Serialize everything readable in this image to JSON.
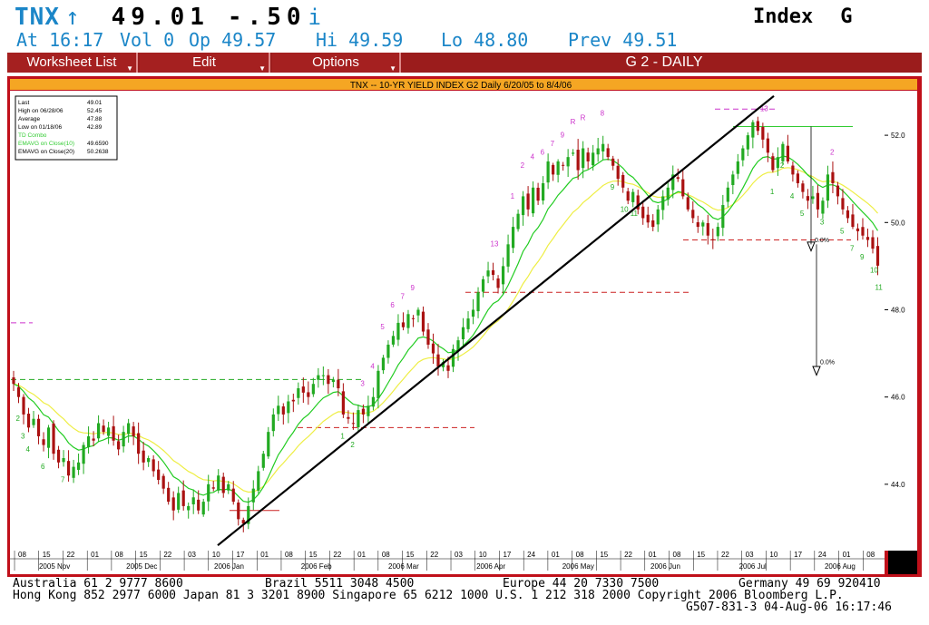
{
  "header": {
    "symbol": "TNX",
    "arrow": "↑",
    "last": "49.01",
    "change": "-.50",
    "info_icon": "i",
    "type": "Index",
    "type_key": "G",
    "quote": {
      "at": "At 16:17",
      "vol": "Vol 0",
      "op": "Op 49.57",
      "hi": "Hi 49.59",
      "lo": "Lo 48.80",
      "prev": "Prev 49.51"
    }
  },
  "menu": {
    "worksheet": "Worksheet List",
    "edit": "Edit",
    "options": "Options",
    "title": "G  2 - DAILY"
  },
  "chart": {
    "title": "TNX -- 10-YR YIELD INDEX G2 Daily 6/20/05 to 8/4/06",
    "legend": [
      {
        "label": "Last",
        "value": "49.01",
        "color": "#000000"
      },
      {
        "label": "High on  06/28/06",
        "value": "52.45",
        "color": "#000000"
      },
      {
        "label": "Average",
        "value": "47.88",
        "color": "#000000"
      },
      {
        "label": "Low on  01/18/06",
        "value": "42.89",
        "color": "#000000"
      },
      {
        "label": "TD Combo",
        "value": "",
        "color": "#33cc33"
      },
      {
        "label": "EMAVG on Close(10)",
        "value": "49.6590",
        "color": "#33cc33"
      },
      {
        "label": "EMAVG on Close(20)",
        "value": "50.2638",
        "color": "#000000"
      }
    ],
    "y_ticks": [
      "52.0",
      "50.0",
      "48.0",
      "46.0",
      "44.0"
    ],
    "x_days": [
      "08",
      "15",
      "22",
      "01",
      "08",
      "15",
      "22",
      "03",
      "10",
      "17",
      "01",
      "08",
      "15",
      "22",
      "01",
      "08",
      "15",
      "22",
      "03",
      "10",
      "17",
      "24",
      "01",
      "08",
      "15",
      "22",
      "01",
      "08",
      "15",
      "22",
      "03",
      "10",
      "17",
      "24",
      "01",
      "08"
    ],
    "x_months": [
      "2005 Nov",
      "2005 Dec",
      "2006 Jan",
      "2006 Feb",
      "2006 Mar",
      "2006 Apr",
      "2006 May",
      "2006 Jun",
      "2006 Jul",
      "2006 Aug"
    ],
    "pct_labels": [
      "0.0%",
      "0.0%"
    ],
    "colors": {
      "up": "#22aa22",
      "down": "#aa1111",
      "ema10": "#22cc22",
      "ema20": "#eeee44",
      "trend": "#000000",
      "frame": "#c0101a",
      "title_bg": "#f5a623",
      "td": "#cc33cc"
    }
  },
  "chart_data": {
    "type": "candlestick",
    "title": "TNX -- 10-YR YIELD INDEX G2 Daily 6/20/05 to 8/4/06",
    "x_range": [
      "2005-11-07",
      "2006-08-04"
    ],
    "ylim": [
      42.5,
      53.0
    ],
    "close": [
      46.3,
      46.0,
      45.6,
      45.3,
      45.5,
      45.1,
      44.9,
      45.3,
      44.7,
      44.5,
      44.6,
      44.2,
      44.4,
      44.5,
      44.9,
      45.1,
      45.0,
      45.4,
      45.2,
      45.3,
      45.0,
      44.8,
      45.2,
      45.4,
      45.1,
      44.7,
      44.5,
      44.6,
      44.3,
      44.1,
      43.9,
      43.6,
      43.4,
      43.8,
      43.5,
      43.5,
      43.7,
      43.4,
      43.6,
      44.0,
      43.9,
      44.2,
      43.8,
      44.0,
      43.6,
      43.2,
      43.1,
      43.5,
      43.9,
      44.3,
      44.7,
      45.2,
      45.6,
      45.8,
      45.6,
      45.9,
      45.9,
      46.2,
      46.1,
      46.0,
      46.3,
      46.5,
      46.5,
      46.3,
      46.4,
      46.2,
      45.6,
      45.5,
      45.4,
      45.7,
      45.6,
      45.8,
      46.0,
      46.6,
      46.9,
      47.2,
      47.4,
      47.7,
      47.6,
      47.9,
      47.8,
      48.0,
      47.5,
      47.2,
      47.0,
      46.7,
      46.8,
      46.6,
      47.1,
      47.3,
      47.6,
      47.8,
      48.0,
      48.4,
      48.7,
      48.9,
      48.8,
      48.5,
      49.0,
      49.5,
      49.9,
      50.2,
      50.6,
      50.3,
      50.8,
      50.5,
      50.9,
      51.4,
      51.1,
      51.4,
      51.3,
      51.5,
      51.6,
      51.2,
      51.7,
      51.4,
      51.6,
      51.7,
      51.8,
      51.5,
      51.3,
      51.0,
      50.8,
      50.5,
      50.7,
      50.3,
      50.1,
      50.0,
      49.9,
      50.3,
      50.6,
      50.8,
      51.1,
      51.0,
      50.6,
      50.3,
      50.1,
      49.9,
      50.0,
      49.7,
      49.6,
      49.9,
      50.4,
      50.8,
      51.1,
      51.4,
      51.7,
      52.0,
      52.3,
      52.1,
      51.9,
      51.6,
      51.2,
      51.5,
      51.8,
      51.4,
      51.1,
      50.9,
      50.7,
      50.5,
      50.6,
      50.3,
      50.5,
      51.1,
      50.9,
      50.6,
      50.3,
      50.1,
      49.9,
      49.8,
      49.7,
      49.6,
      49.4,
      49.01
    ],
    "ema10_last": 49.659,
    "ema20_last": 50.2638,
    "last": 49.01,
    "high": 52.45,
    "high_date": "06/28/06",
    "average": 47.88,
    "low": 42.89,
    "low_date": "01/18/06"
  },
  "footer": {
    "line1": [
      {
        "text": "Australia 61 2 9777 8600"
      },
      {
        "text": "Brazil 5511 3048 4500"
      },
      {
        "text": "Europe 44 20 7330 7500"
      },
      {
        "text": "Germany 49 69 920410"
      }
    ],
    "line2": "Hong Kong 852 2977 6000 Japan 81 3 3201 8900 Singapore 65 6212 1000 U.S. 1 212 318 2000 Copyright 2006 Bloomberg L.P.",
    "line3": "G507-831-3 04-Aug-06 16:17:46"
  }
}
